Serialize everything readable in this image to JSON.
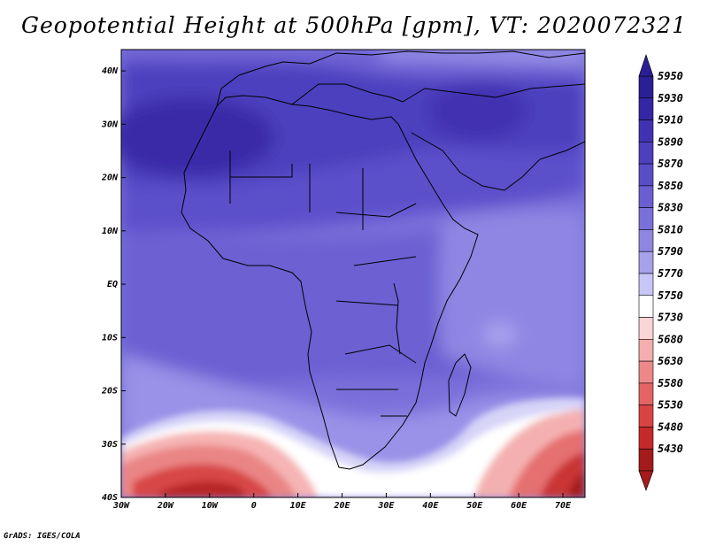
{
  "title": "Geopotential Height at 500hPa [gpm], VT: 2020072321",
  "credit": "GrADS: IGES/COLA",
  "map": {
    "lon_ticks": [
      "30W",
      "20W",
      "10W",
      "0",
      "10E",
      "20E",
      "30E",
      "40E",
      "50E",
      "60E",
      "70E"
    ],
    "lat_ticks": [
      "40N",
      "30N",
      "20N",
      "10N",
      "EQ",
      "10S",
      "20S",
      "30S",
      "40S"
    ],
    "lon_range": [
      -30,
      75
    ],
    "lat_range": [
      -40,
      44
    ]
  },
  "colorbar": {
    "levels": [
      "5950",
      "5930",
      "5910",
      "5890",
      "5870",
      "5850",
      "5830",
      "5810",
      "5790",
      "5770",
      "5750",
      "5730",
      "5680",
      "5630",
      "5580",
      "5530",
      "5480",
      "5430"
    ],
    "colors": [
      "#2a1f95",
      "#3526a6",
      "#4232b3",
      "#4d3fbe",
      "#5a4dc8",
      "#6a5ed2",
      "#7a70da",
      "#8e86e2",
      "#a7a1ec",
      "#c8c6f6",
      "#ffffff",
      "#fbd4d4",
      "#f6adad",
      "#ee8888",
      "#e56363",
      "#d94343",
      "#c52a2a",
      "#a51a1a"
    ]
  },
  "legend_colors": {
    "africa_land_approx": "#5e52cb",
    "ocean_general": "#7a70da"
  }
}
